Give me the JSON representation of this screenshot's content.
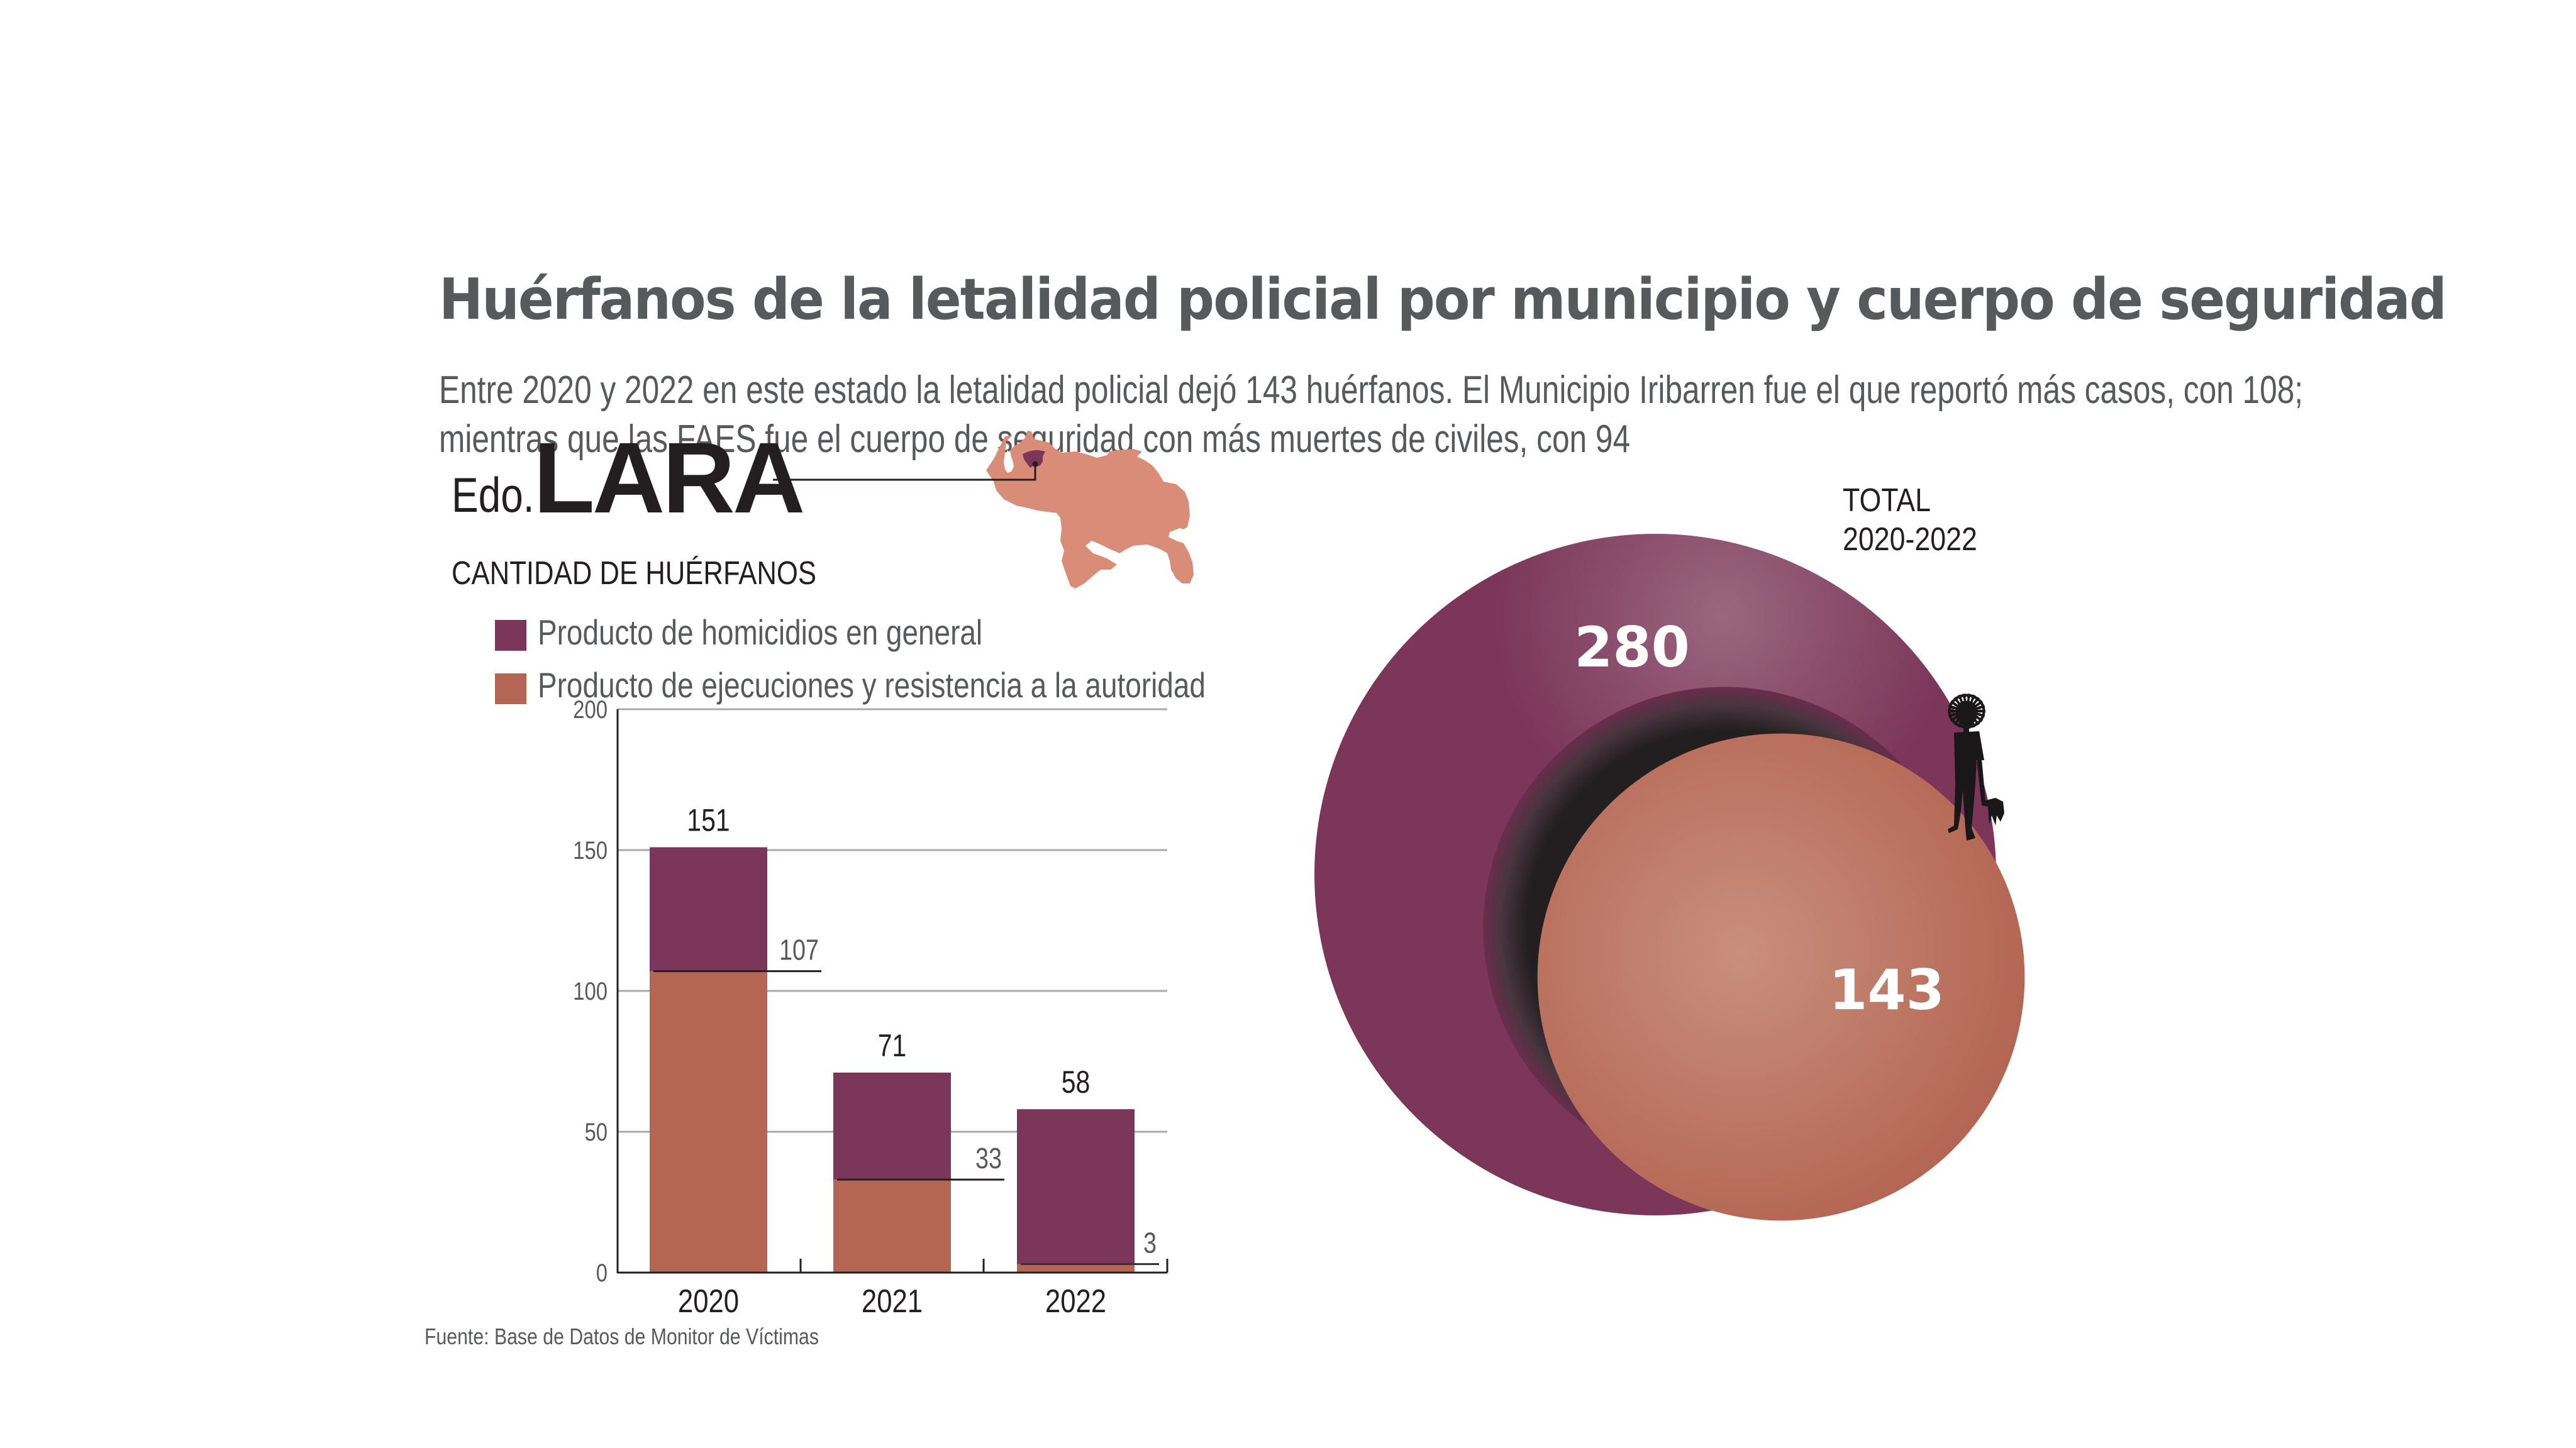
{
  "header": {
    "title": "Huérfanos de la letalidad policial por municipio y cuerpo de seguridad",
    "subtitle_line1": "Entre 2020 y 2022 en este estado la letalidad policial dejó 143 huérfanos. El Municipio Iribarren fue el que reportó más casos, con 108;",
    "subtitle_line2": "mientras que las FAES fue el cuerpo de seguridad con más muertes de civiles, con 94"
  },
  "state": {
    "prefix": "Edo.",
    "name": "LARA"
  },
  "map": {
    "country_color": "#d98c78",
    "highlight_color": "#7b3659",
    "highlight_label": "Lara"
  },
  "colors": {
    "homicidios": "#7b3659",
    "ejecuciones": "#b46553",
    "title_gray": "#58595b",
    "text_dark": "#231f20",
    "grid": "#a7a9ac"
  },
  "chart_data": [
    {
      "type": "bar",
      "stacked": true,
      "title": "CANTIDAD DE HUÉRFANOS",
      "xlabel": "",
      "ylabel": "",
      "categories": [
        "2020",
        "2021",
        "2022"
      ],
      "ylim": [
        0,
        200
      ],
      "yticks": [
        0,
        50,
        100,
        150,
        200
      ],
      "grid": true,
      "legend_position": "top-left",
      "series": [
        {
          "name": "Producto de ejecuciones y resistencia a la autoridad",
          "values": [
            107,
            33,
            3
          ],
          "color": "#b46553"
        },
        {
          "name": "Producto de homicidios en general",
          "values": [
            44,
            38,
            55
          ],
          "color": "#7b3659"
        }
      ],
      "totals": [
        151,
        71,
        58
      ],
      "total_labels": [
        "151",
        "71",
        "58"
      ],
      "segment_labels": [
        "107",
        "33",
        "3"
      ],
      "legend": [
        {
          "label": "Producto de homicidios en general",
          "color": "#7b3659"
        },
        {
          "label": "Producto de ejecuciones y resistencia a la autoridad",
          "color": "#b46553"
        }
      ],
      "source": "Fuente: Base de Datos de Monitor de Víctimas"
    },
    {
      "type": "bubble",
      "title_line1": "TOTAL",
      "title_line2": "2020-2022",
      "series": [
        {
          "name": "Producto de homicidios en general (total huérfanos)",
          "value": 280,
          "label": "280",
          "color": "#7b3659"
        },
        {
          "name": "Producto de ejecuciones y resistencia a la autoridad",
          "value": 143,
          "label": "143",
          "color": "#b46553"
        }
      ],
      "illustration": "child-silhouette-holding-doll"
    }
  ]
}
